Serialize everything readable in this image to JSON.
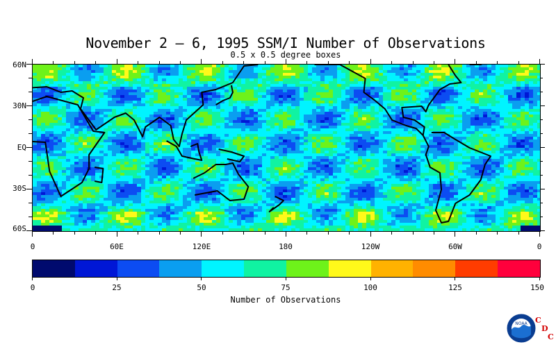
{
  "title": "November 2 – 6, 1995 SSM/I Number of Observations",
  "subtitle": "0.5 x 0.5 degree boxes",
  "lat_labels": [
    "60N",
    "30N",
    "EQ",
    "30S",
    "60S"
  ],
  "lon_labels": [
    "0",
    "60E",
    "120E",
    "180",
    "120W",
    "60W",
    "0"
  ],
  "colorbar": {
    "title": "Number of Observations",
    "tick_labels": [
      "0",
      "25",
      "50",
      "75",
      "100",
      "125",
      "150"
    ],
    "colors": [
      "#000a6e",
      "#0017d6",
      "#0c4cf2",
      "#0a9ef0",
      "#00f4ff",
      "#10f3a2",
      "#6ef21a",
      "#fff91a",
      "#ffb200",
      "#ff8c00",
      "#ff3c00",
      "#ff003c"
    ],
    "range": [
      0,
      150
    ],
    "steps": 12
  },
  "map": {
    "lat_range": [
      -60,
      60
    ],
    "lon_range": [
      0,
      360
    ],
    "projection": "cylindrical equidistant",
    "field": "SSM/I number of observations",
    "grid": "0.5 x 0.5 degree boxes"
  },
  "logo": {
    "noaa_text": "NOAA",
    "cdc_letters": [
      "C",
      "D",
      "C"
    ]
  }
}
